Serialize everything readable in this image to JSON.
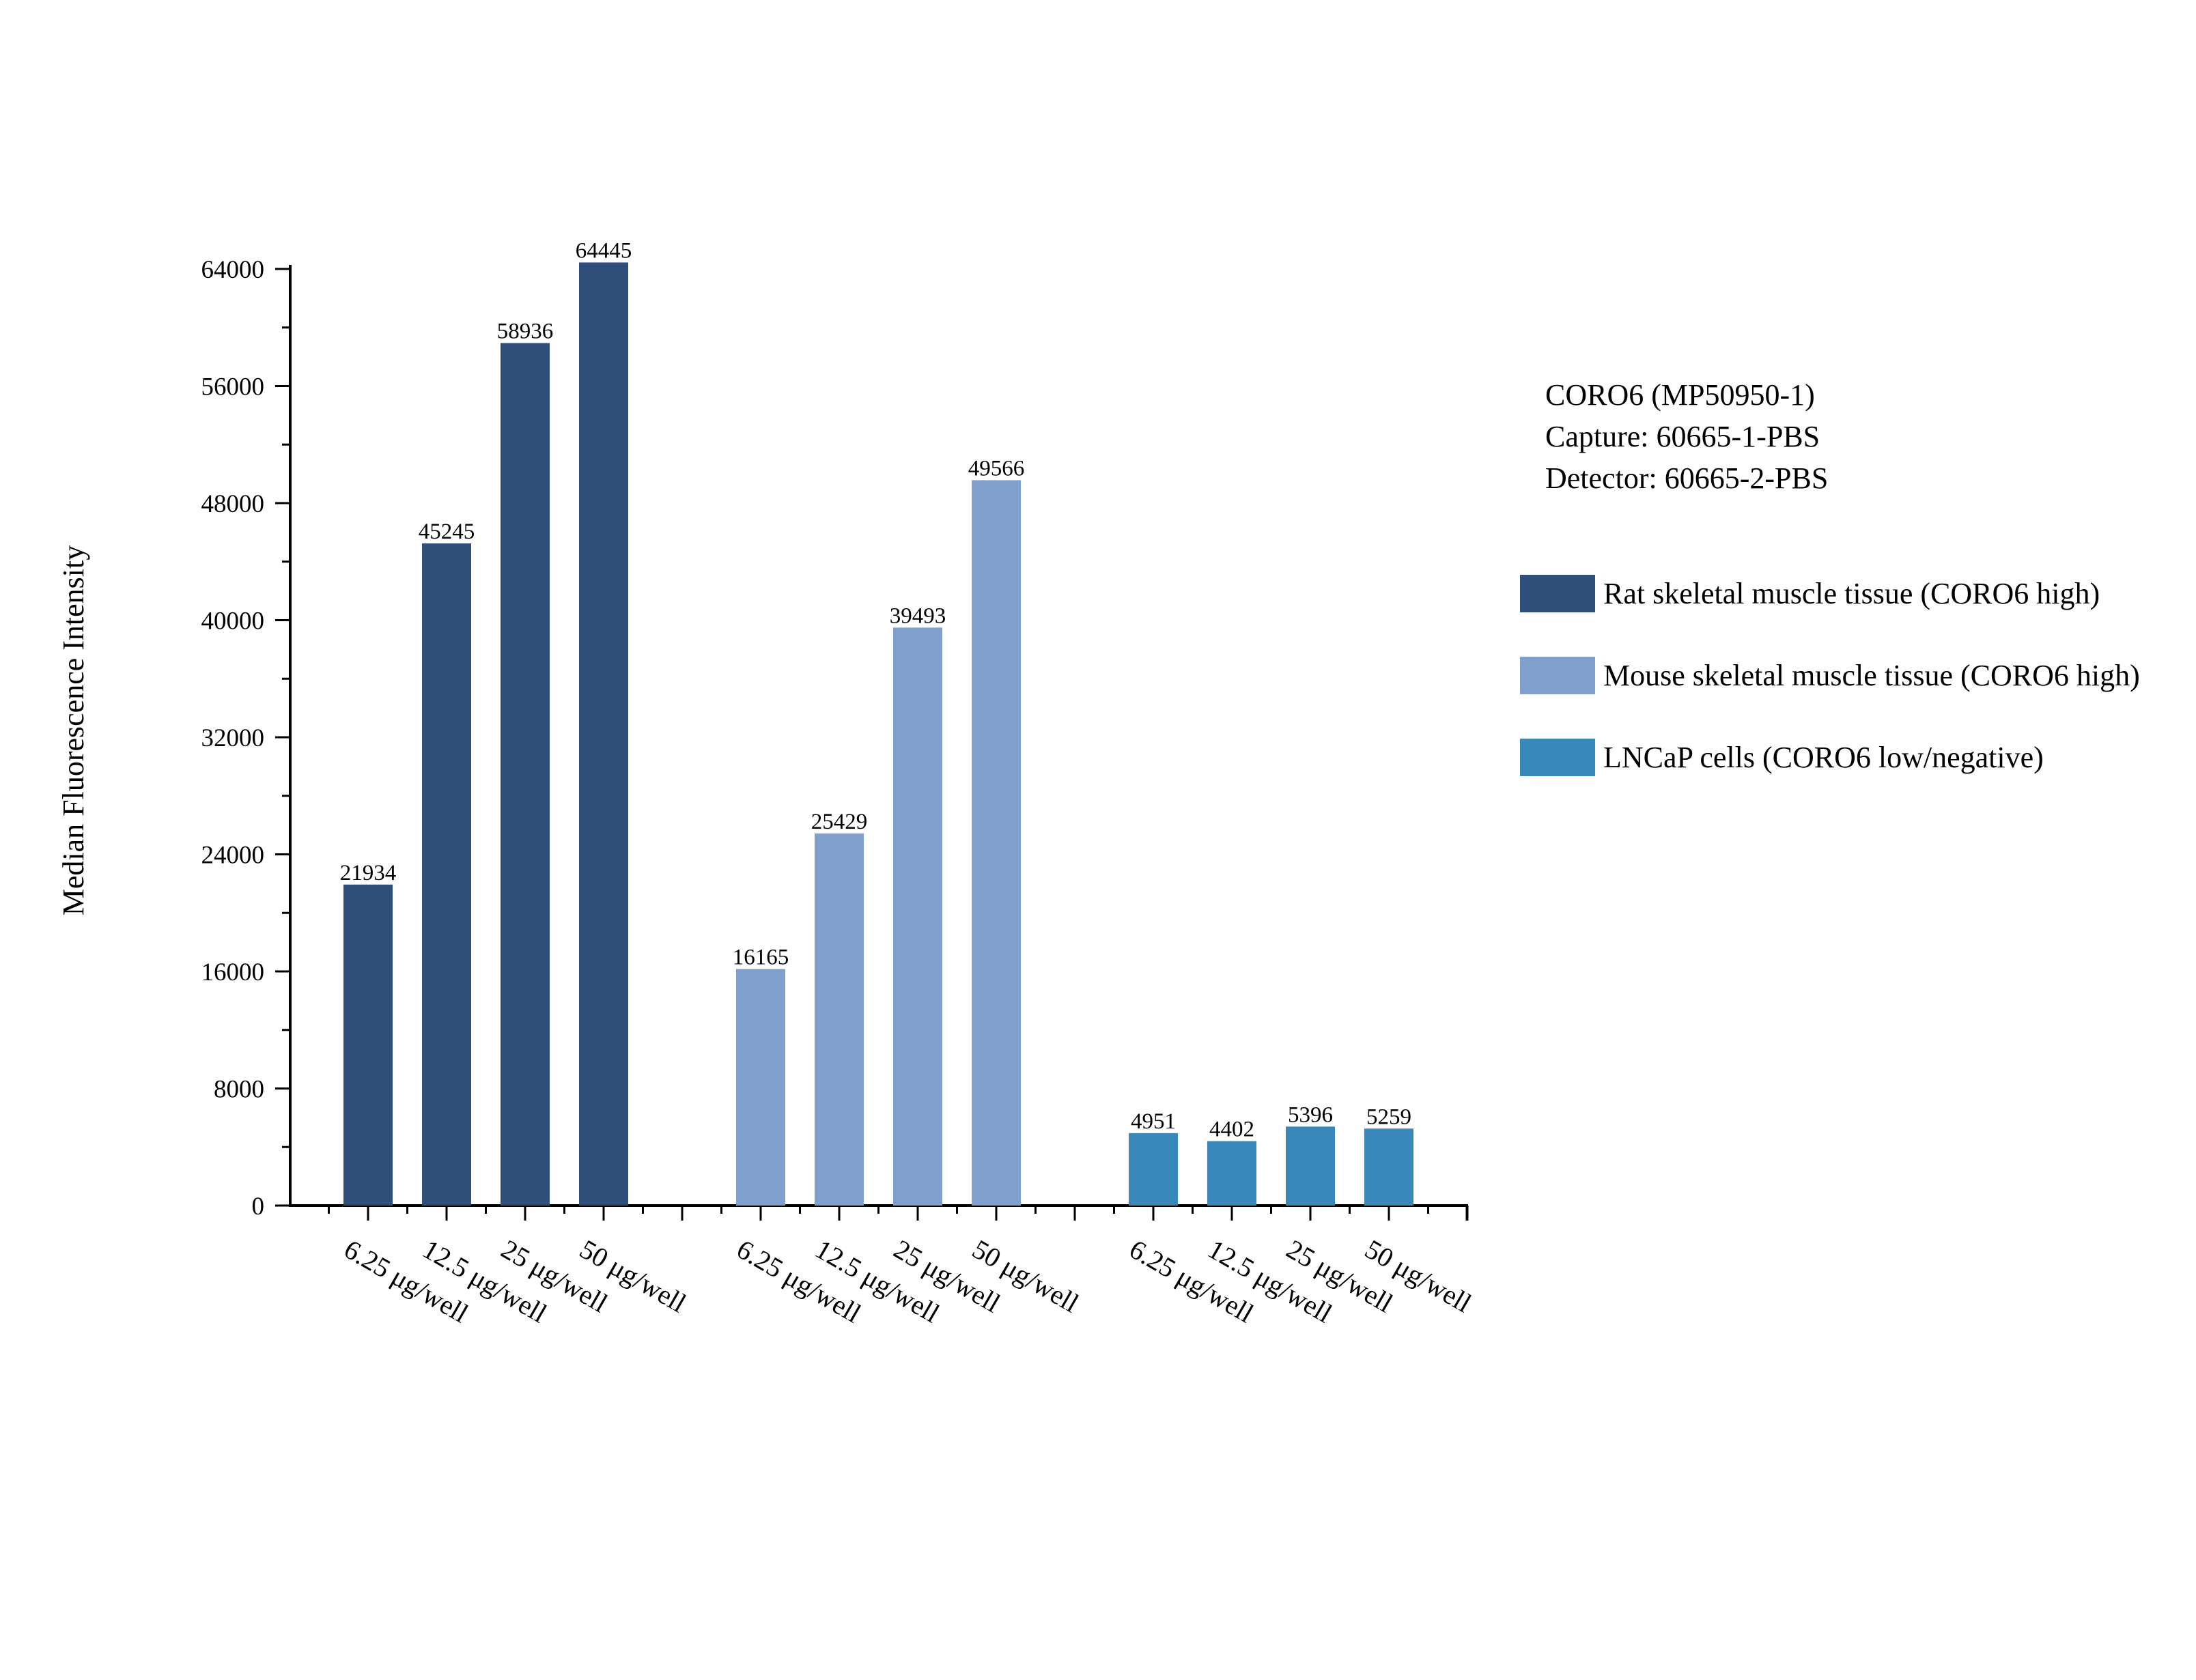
{
  "chart_data": {
    "type": "bar",
    "title": "",
    "xlabel": "",
    "ylabel": "Median Fluorescence Intensity",
    "ylim": [
      0,
      64000
    ],
    "yticks": [
      0,
      8000,
      16000,
      24000,
      32000,
      40000,
      48000,
      56000,
      64000
    ],
    "grid": false,
    "legend_position": "right",
    "info": [
      "CORO6 (MP50950-1)",
      "Capture: 60665-1-PBS",
      "Detector: 60665-2-PBS"
    ],
    "categories": [
      "6.25 μg/well",
      "12.5 μg/well",
      "25 μg/well",
      "50 μg/well"
    ],
    "series": [
      {
        "name": "Rat skeletal muscle tissue (CORO6 high)",
        "color": "#2f4e79",
        "values": [
          21934,
          45245,
          58936,
          64445
        ]
      },
      {
        "name": "Mouse skeletal muscle tissue (CORO6 high)",
        "color": "#7f9fcc",
        "values": [
          16165,
          25429,
          39493,
          49566
        ]
      },
      {
        "name": "LNCaP cells (CORO6 low/negative)",
        "color": "#3a88b9",
        "values": [
          4951,
          4402,
          5396,
          5259
        ]
      }
    ]
  }
}
